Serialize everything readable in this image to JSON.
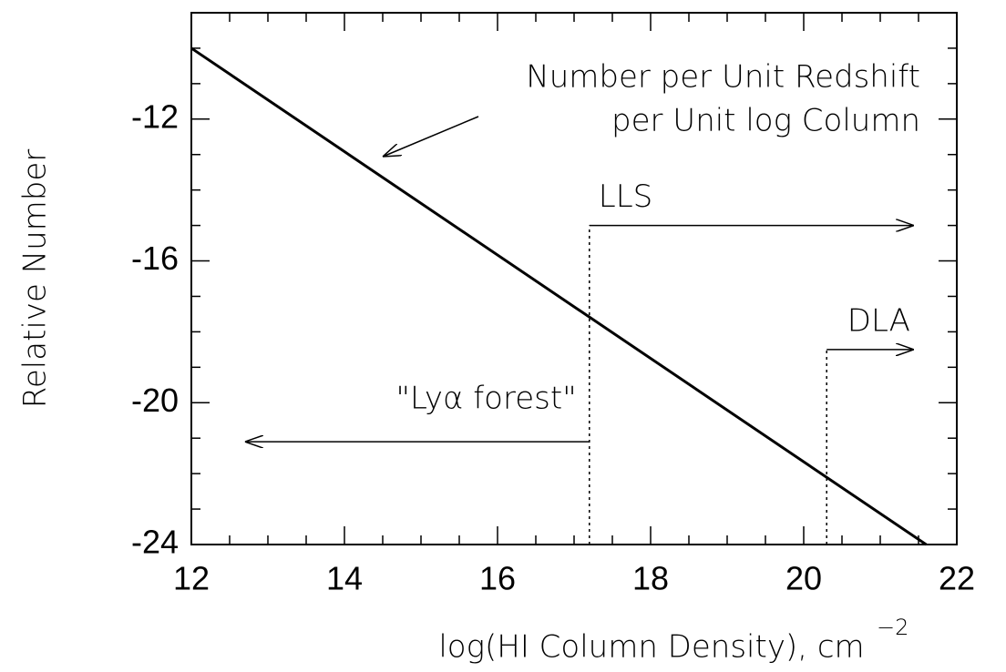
{
  "chart_data": {
    "type": "line",
    "xlabel": "log(HI Column Density), cm",
    "xlabel_exponent": "−2",
    "ylabel": "Relative Number",
    "x": [
      12,
      21.6
    ],
    "series": [
      {
        "values": [
          -10,
          -24
        ],
        "color": "#000000"
      }
    ],
    "xlim": [
      12,
      22
    ],
    "ylim": [
      -24,
      -9
    ],
    "xticks": [
      12,
      14,
      16,
      18,
      20,
      22
    ],
    "yticks": [
      -24,
      -20,
      -16,
      -12
    ],
    "xminorticks": [
      12.5,
      13,
      13.5,
      14.5,
      15,
      15.5,
      16.5,
      17,
      17.5,
      18.5,
      19,
      19.5,
      20.5,
      21,
      21.5
    ],
    "yminorticks": [
      -23,
      -22,
      -21,
      -19,
      -18,
      -17,
      -15,
      -14,
      -13,
      -11,
      -10
    ],
    "curve_label": [
      "Number per Unit Redshift",
      "per Unit log Column"
    ],
    "thresholds": [
      {
        "label": "LLS",
        "x": 17.2,
        "y": -15,
        "arrow_to": 21.44
      },
      {
        "label": "DLA",
        "x": 20.3,
        "y": -18.5,
        "arrow_to": 21.44
      }
    ],
    "forest": {
      "label": "\"Lyα forest\"",
      "y": -21.1,
      "arrow_to": 12.7
    }
  }
}
